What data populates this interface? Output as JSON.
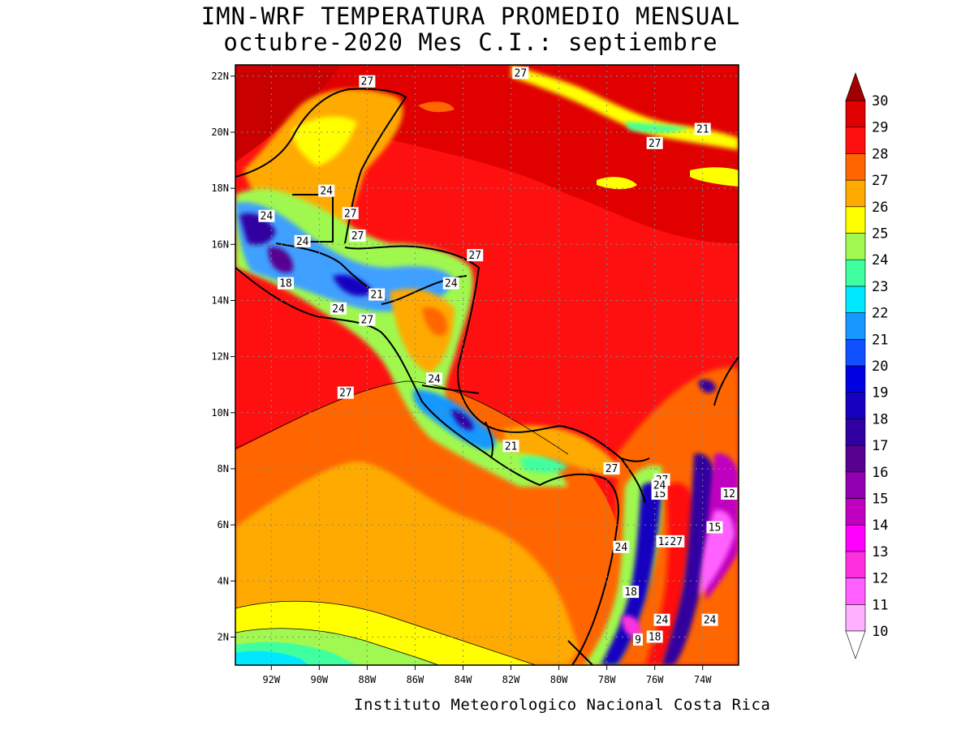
{
  "header": {
    "title": "IMN-WRF  TEMPERATURA PROMEDIO MENSUAL",
    "subtitle": "octubre-2020 Mes C.I.: septiembre"
  },
  "footer": {
    "credit": "Instituto Meteorologico Nacional Costa Rica"
  },
  "map": {
    "lon_range": [
      -93.5,
      -72.5
    ],
    "lat_range": [
      1.0,
      22.4
    ],
    "lat_ticks": [
      "2N",
      "4N",
      "6N",
      "8N",
      "10N",
      "12N",
      "14N",
      "16N",
      "18N",
      "20N",
      "22N"
    ],
    "lon_ticks": [
      "92W",
      "90W",
      "88W",
      "86W",
      "84W",
      "82W",
      "80W",
      "78W",
      "76W",
      "74W"
    ],
    "grid": true
  },
  "colorbar": {
    "levels": [
      "10",
      "11",
      "12",
      "13",
      "14",
      "15",
      "16",
      "17",
      "18",
      "19",
      "20",
      "21",
      "22",
      "23",
      "24",
      "25",
      "26",
      "27",
      "28",
      "29",
      "30"
    ],
    "colors": [
      "#ffb0ff",
      "#ff60ff",
      "#ff30e0",
      "#ff00ff",
      "#c000c0",
      "#9000b0",
      "#580090",
      "#3000a0",
      "#1800c0",
      "#0000e0",
      "#1050ff",
      "#1898ff",
      "#00e8ff",
      "#40ffa0",
      "#a0f850",
      "#ffff00",
      "#ffaa00",
      "#ff6600",
      "#ff1010",
      "#e00000",
      "#a00000"
    ]
  },
  "contour_labels": [
    "27",
    "27",
    "24",
    "27",
    "27",
    "21",
    "24",
    "27",
    "24",
    "27",
    "18",
    "21",
    "24",
    "27",
    "27",
    "24",
    "24",
    "21",
    "27",
    "27",
    "15",
    "24",
    "15",
    "12",
    "27",
    "24",
    "18",
    "24",
    "9",
    "18",
    "24",
    "12"
  ]
}
